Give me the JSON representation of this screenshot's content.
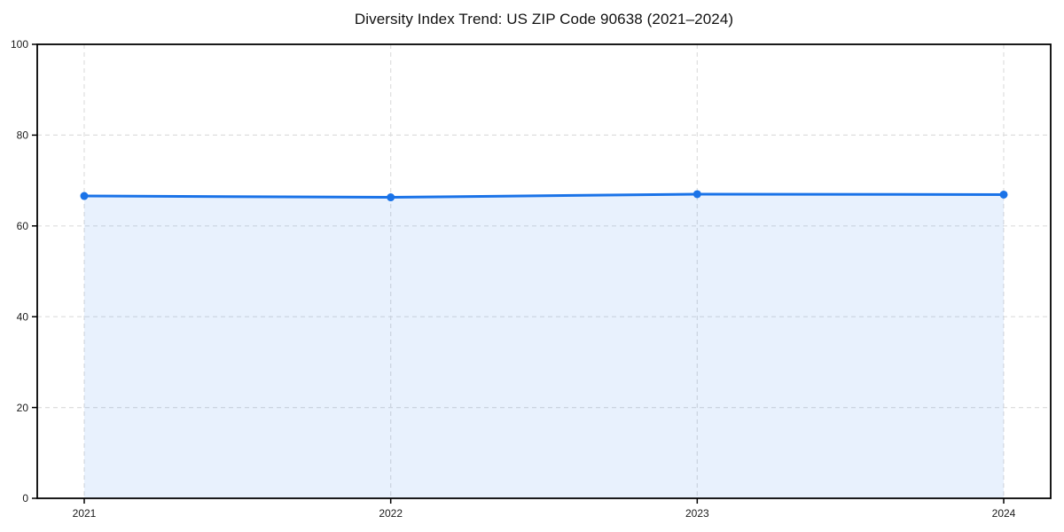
{
  "figure": {
    "background": "#ffffff"
  },
  "chart_data": {
    "type": "area",
    "title": "Diversity Index Trend: US ZIP Code 90638 (2021–2024)",
    "categories": [
      "2021",
      "2022",
      "2023",
      "2024"
    ],
    "series": [
      {
        "name": "Diversity Index",
        "values": [
          66.6,
          66.3,
          67.0,
          66.9
        ]
      }
    ],
    "xlabel": "",
    "ylabel": "",
    "ylim": [
      0,
      100
    ],
    "y_ticks": [
      0,
      20,
      40,
      60,
      80,
      100
    ],
    "grid": "dashed both horizontal and vertical",
    "legend_position": "none",
    "markers": "circle",
    "colors": {
      "line": "#1a73e8",
      "marker": "#1a73e8",
      "area_fill": "rgba(26,115,232,0.10)",
      "grid": "#dedede",
      "spine": "#000000",
      "tick_label": "#1a1a1a",
      "title": "#111111",
      "background": "#ffffff"
    }
  }
}
